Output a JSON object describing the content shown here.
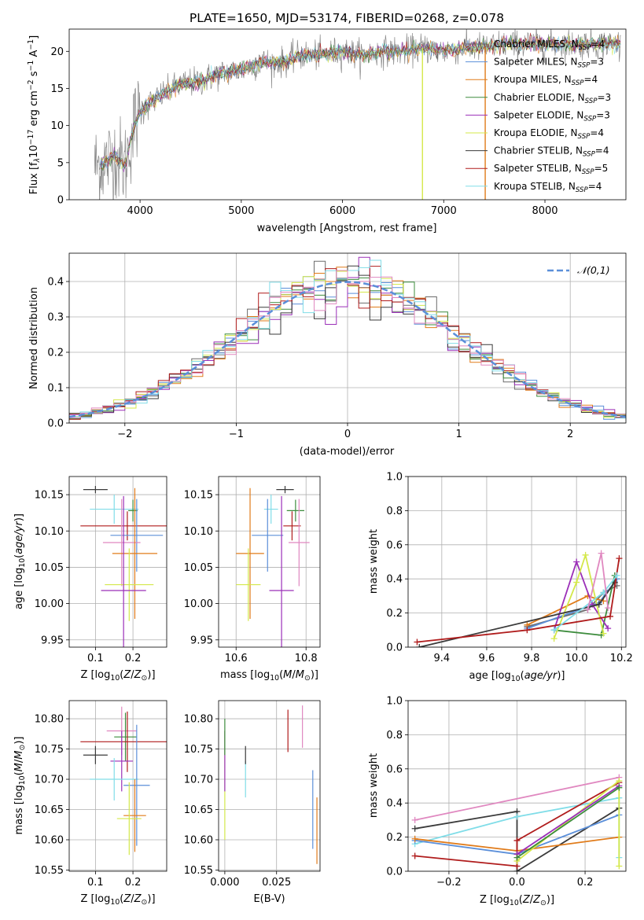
{
  "colors": {
    "Chabrier MILES": "#6b6b6b",
    "Salpeter MILES": "#5b8fd9",
    "Kroupa MILES": "#e07b1a",
    "Chabrier ELODIE": "#3d8c3d",
    "Salpeter ELODIE": "#9b2fb8",
    "Kroupa ELODIE": "#d4e84a",
    "Chabrier STELIB": "#3a3a3a",
    "Salpeter STELIB": "#b01c1c",
    "Kroupa STELIB": "#80dde8",
    "pink": "#e088c0",
    "normal_curve": "#5b8fd9"
  },
  "chart_data": [
    {
      "id": "spectrum",
      "type": "line",
      "title": "PLATE=1650, MJD=53174, FIBERID=0268, z=0.078",
      "xlabel": "wavelength [Angstrom, rest frame]",
      "ylabel": "Flux [f_λ10^-17 erg cm^-2 s^-1 A^-1]",
      "xlim": [
        3300,
        8800
      ],
      "ylim": [
        0,
        23
      ],
      "xticks": [
        4000,
        5000,
        6000,
        7000,
        8000
      ],
      "yticks": [
        0,
        5,
        10,
        15,
        20
      ],
      "legend_position": "top-right",
      "legend": [
        {
          "model": "Chabrier MILES",
          "nssp": "4"
        },
        {
          "model": "Salpeter MILES",
          "nssp": "3"
        },
        {
          "model": "Kroupa MILES",
          "nssp": "4"
        },
        {
          "model": "Chabrier ELODIE",
          "nssp": "3"
        },
        {
          "model": "Salpeter ELODIE",
          "nssp": "3"
        },
        {
          "model": "Kroupa ELODIE",
          "nssp": "4"
        },
        {
          "model": "Chabrier STELIB",
          "nssp": "4"
        },
        {
          "model": "Salpeter STELIB",
          "nssp": "5"
        },
        {
          "model": "Kroupa STELIB",
          "nssp": "4"
        }
      ],
      "continuum": {
        "x": [
          3550,
          3650,
          3750,
          3850,
          3950,
          4050,
          4200,
          4400,
          4600,
          4800,
          5000,
          5200,
          5400,
          5600,
          5800,
          6000,
          6200,
          6400,
          6600,
          6800,
          7000,
          7200,
          7400,
          7600,
          7800
        ],
        "y": [
          4.5,
          5.0,
          6.0,
          4.5,
          10.5,
          12.5,
          14.0,
          15.5,
          16.0,
          17.0,
          17.5,
          18.5,
          18.5,
          19.5,
          19.5,
          20.0,
          19.5,
          20.0,
          20.0,
          20.5,
          20.0,
          20.5,
          20.5,
          21.0,
          21.0
        ]
      },
      "dips": [
        {
          "x": 6790,
          "y": 0,
          "series": "Kroupa ELODIE"
        },
        {
          "x": 7410,
          "y": 0,
          "series": "Kroupa MILES"
        }
      ]
    },
    {
      "id": "residuals",
      "type": "line",
      "xlabel": "(data-model)/error",
      "ylabel": "Normed distribution",
      "xlim": [
        -2.5,
        2.5
      ],
      "ylim": [
        0,
        0.48
      ],
      "xticks": [
        -2,
        -1,
        0,
        1,
        2
      ],
      "yticks": [
        0.0,
        0.1,
        0.2,
        0.3,
        0.4
      ],
      "grid": true,
      "legend_position": "top-right",
      "legend_label": "𝒩(0,1)",
      "normal": {
        "mu": 0,
        "sigma": 1
      }
    },
    {
      "id": "age-vs-z",
      "type": "scatter",
      "xlabel": "Z [log10(Z/Z⊙)]",
      "ylabel": "age [log10(age/yr)]",
      "xlim": [
        0.03,
        0.29
      ],
      "ylim": [
        9.94,
        10.175
      ],
      "xticks": [
        0.1,
        0.2
      ],
      "yticks": [
        9.95,
        10.0,
        10.05,
        10.1,
        10.15
      ],
      "grid": true,
      "points": [
        {
          "x": 0.1,
          "y": 10.157,
          "xerr": 0.065,
          "yerr": 0.005,
          "series": "Chabrier STELIB"
        },
        {
          "x": 0.15,
          "y": 10.13,
          "xerr": 0.13,
          "yerr": 0.02,
          "series": "Kroupa STELIB"
        },
        {
          "x": 0.2,
          "y": 10.128,
          "xerr": 0.025,
          "yerr": 0.015,
          "series": "Chabrier ELODIE"
        },
        {
          "x": 0.185,
          "y": 10.107,
          "xerr": 0.25,
          "yerr": 0.02,
          "series": "Salpeter STELIB"
        },
        {
          "x": 0.21,
          "y": 10.094,
          "xerr": 0.14,
          "yerr": 0.05,
          "series": "Salpeter MILES"
        },
        {
          "x": 0.17,
          "y": 10.084,
          "xerr": 0.1,
          "yerr": 0.06,
          "series": "pink"
        },
        {
          "x": 0.205,
          "y": 10.069,
          "xerr": 0.12,
          "yerr": 0.09,
          "series": "Kroupa MILES"
        },
        {
          "x": 0.19,
          "y": 10.026,
          "xerr": 0.13,
          "yerr": 0.05,
          "series": "Kroupa ELODIE"
        },
        {
          "x": 0.175,
          "y": 10.018,
          "xerr": 0.12,
          "yerr": 0.13,
          "series": "Salpeter ELODIE"
        }
      ]
    },
    {
      "id": "age-vs-mass",
      "type": "scatter",
      "xlabel": "mass [log10(M/M⊙)]",
      "xlim": [
        10.55,
        10.84
      ],
      "ylim": [
        9.94,
        10.175
      ],
      "xticks": [
        10.6,
        10.8
      ],
      "yticks": [
        9.95,
        10.0,
        10.05,
        10.1,
        10.15
      ],
      "grid": true,
      "points": [
        {
          "x": 10.74,
          "y": 10.157,
          "xerr": 0.05,
          "yerr": 0.005,
          "series": "Chabrier STELIB"
        },
        {
          "x": 10.7,
          "y": 10.13,
          "xerr": 0.04,
          "yerr": 0.02,
          "series": "Kroupa STELIB"
        },
        {
          "x": 10.77,
          "y": 10.128,
          "xerr": 0.05,
          "yerr": 0.015,
          "series": "Chabrier ELODIE"
        },
        {
          "x": 10.76,
          "y": 10.107,
          "xerr": 0.05,
          "yerr": 0.02,
          "series": "Salpeter STELIB"
        },
        {
          "x": 10.69,
          "y": 10.094,
          "xerr": 0.09,
          "yerr": 0.05,
          "series": "Salpeter MILES"
        },
        {
          "x": 10.78,
          "y": 10.084,
          "xerr": 0.06,
          "yerr": 0.06,
          "series": "pink"
        },
        {
          "x": 10.64,
          "y": 10.069,
          "xerr": 0.08,
          "yerr": 0.09,
          "series": "Kroupa MILES"
        },
        {
          "x": 10.635,
          "y": 10.026,
          "xerr": 0.07,
          "yerr": 0.05,
          "series": "Kroupa ELODIE"
        },
        {
          "x": 10.73,
          "y": 10.018,
          "xerr": 0.07,
          "yerr": 0.13,
          "series": "Salpeter ELODIE"
        }
      ]
    },
    {
      "id": "weight-vs-age",
      "type": "line",
      "xlabel": "age [log10(age/yr)]",
      "ylabel": "mass weight",
      "xlim": [
        9.25,
        10.22
      ],
      "ylim": [
        0,
        1
      ],
      "xticks": [
        9.4,
        9.6,
        9.8,
        10.0,
        10.2
      ],
      "yticks": [
        0.0,
        0.2,
        0.4,
        0.6,
        0.8,
        1.0
      ],
      "grid": true,
      "series": [
        {
          "color": "Chabrier MILES",
          "x": [
            9.78,
            10.05,
            10.12,
            10.18
          ],
          "y": [
            0.12,
            0.22,
            0.32,
            0.36
          ]
        },
        {
          "color": "Salpeter MILES",
          "x": [
            9.78,
            10.1,
            10.18
          ],
          "y": [
            0.11,
            0.26,
            0.4
          ]
        },
        {
          "color": "Kroupa MILES",
          "x": [
            9.78,
            10.05,
            10.12
          ],
          "y": [
            0.13,
            0.3,
            0.27
          ]
        },
        {
          "color": "Chabrier ELODIE",
          "x": [
            9.9,
            10.11,
            10.17
          ],
          "y": [
            0.1,
            0.07,
            0.42
          ]
        },
        {
          "color": "Salpeter ELODIE",
          "x": [
            9.9,
            10.0,
            10.07,
            10.14
          ],
          "y": [
            0.1,
            0.5,
            0.25,
            0.11
          ]
        },
        {
          "color": "Kroupa ELODIE",
          "x": [
            9.9,
            10.0,
            10.04,
            10.12
          ],
          "y": [
            0.05,
            0.38,
            0.54,
            0.08
          ]
        },
        {
          "color": "Chabrier STELIB",
          "x": [
            9.3,
            10.1,
            10.17
          ],
          "y": [
            0.0,
            0.25,
            0.38
          ]
        },
        {
          "color": "Salpeter STELIB",
          "x": [
            9.29,
            9.78,
            10.15,
            10.19
          ],
          "y": [
            0.03,
            0.1,
            0.18,
            0.52
          ]
        },
        {
          "color": "Kroupa STELIB",
          "x": [
            9.9,
            10.12,
            10.18
          ],
          "y": [
            0.1,
            0.32,
            0.42
          ]
        },
        {
          "color": "pink",
          "x": [
            10.05,
            10.11,
            10.14
          ],
          "y": [
            0.22,
            0.55,
            0.23
          ]
        }
      ]
    },
    {
      "id": "mass-vs-z",
      "type": "scatter",
      "xlabel": "Z [log10(Z/Z⊙)]",
      "ylabel": "mass [log10(M/M⊙)]",
      "xlim": [
        0.03,
        0.29
      ],
      "ylim": [
        10.548,
        10.83
      ],
      "xticks": [
        0.1,
        0.2
      ],
      "yticks": [
        10.55,
        10.6,
        10.65,
        10.7,
        10.75,
        10.8
      ],
      "grid": true,
      "points": [
        {
          "x": 0.17,
          "y": 10.78,
          "xerr": 0.08,
          "yerr": 0.04,
          "series": "pink"
        },
        {
          "x": 0.18,
          "y": 10.77,
          "xerr": 0.06,
          "yerr": 0.04,
          "series": "Chabrier ELODIE"
        },
        {
          "x": 0.185,
          "y": 10.762,
          "xerr": 0.25,
          "yerr": 0.05,
          "series": "Salpeter STELIB"
        },
        {
          "x": 0.1,
          "y": 10.74,
          "xerr": 0.065,
          "yerr": 0.015,
          "series": "Chabrier STELIB"
        },
        {
          "x": 0.17,
          "y": 10.73,
          "xerr": 0.06,
          "yerr": 0.05,
          "series": "Salpeter ELODIE"
        },
        {
          "x": 0.15,
          "y": 10.7,
          "xerr": 0.13,
          "yerr": 0.035,
          "series": "Kroupa STELIB"
        },
        {
          "x": 0.21,
          "y": 10.69,
          "xerr": 0.07,
          "yerr": 0.1,
          "series": "Salpeter MILES"
        },
        {
          "x": 0.205,
          "y": 10.64,
          "xerr": 0.06,
          "yerr": 0.06,
          "series": "Kroupa MILES"
        },
        {
          "x": 0.19,
          "y": 10.635,
          "xerr": 0.065,
          "yerr": 0.06,
          "series": "Kroupa ELODIE"
        }
      ]
    },
    {
      "id": "mass-vs-ebv",
      "type": "scatter",
      "xlabel": "E(B-V)",
      "xlim": [
        -0.003,
        0.046
      ],
      "ylim": [
        10.548,
        10.83
      ],
      "xticks": [
        0.0,
        0.025
      ],
      "yticks": [
        10.55,
        10.6,
        10.65,
        10.7,
        10.75,
        10.8
      ],
      "grid": true,
      "points": [
        {
          "x": 0.0,
          "y": 10.69,
          "yerr": 0.09,
          "series": "Kroupa ELODIE"
        },
        {
          "x": 0.0,
          "y": 10.73,
          "yerr": 0.05,
          "series": "Salpeter ELODIE"
        },
        {
          "x": 0.0,
          "y": 10.77,
          "yerr": 0.03,
          "series": "Chabrier ELODIE"
        },
        {
          "x": 0.01,
          "y": 10.7,
          "yerr": 0.03,
          "series": "Kroupa STELIB"
        },
        {
          "x": 0.01,
          "y": 10.74,
          "yerr": 0.015,
          "series": "Chabrier STELIB"
        },
        {
          "x": 0.0305,
          "y": 10.78,
          "yerr": 0.035,
          "series": "Salpeter STELIB"
        },
        {
          "x": 0.0375,
          "y": 10.787,
          "yerr": 0.035,
          "series": "pink"
        },
        {
          "x": 0.0425,
          "y": 10.65,
          "yerr": 0.065,
          "series": "Salpeter MILES"
        },
        {
          "x": 0.0445,
          "y": 10.615,
          "yerr": 0.055,
          "series": "Kroupa MILES"
        }
      ]
    },
    {
      "id": "weight-vs-z",
      "type": "line",
      "xlabel": "Z [log10(Z/Z⊙)]",
      "ylabel": "mass weight",
      "xlim": [
        -0.32,
        0.32
      ],
      "ylim": [
        0,
        1
      ],
      "xticks": [
        -0.2,
        0.0,
        0.2
      ],
      "yticks": [
        0.0,
        0.2,
        0.4,
        0.6,
        0.8,
        1.0
      ],
      "grid": true,
      "series": [
        {
          "color": "pink",
          "x": [
            -0.3,
            0.3
          ],
          "y": [
            0.3,
            0.55
          ]
        },
        {
          "color": "Chabrier STELIB",
          "x": [
            -0.3,
            0.0,
            0.0,
            0.3
          ],
          "y": [
            0.25,
            0.35,
            0.0,
            0.37
          ]
        },
        {
          "color": "Kroupa STELIB",
          "x": [
            -0.3,
            0.0,
            0.3,
            0.3
          ],
          "y": [
            0.16,
            0.32,
            0.43,
            0.08
          ]
        },
        {
          "color": "Salpeter MILES",
          "x": [
            -0.3,
            0.0,
            0.3
          ],
          "y": [
            0.18,
            0.1,
            0.33
          ]
        },
        {
          "color": "Kroupa MILES",
          "x": [
            -0.3,
            0.0,
            0.3
          ],
          "y": [
            0.19,
            0.12,
            0.2
          ]
        },
        {
          "color": "Salpeter STELIB",
          "x": [
            -0.3,
            0.0,
            0.0,
            0.3
          ],
          "y": [
            0.09,
            0.03,
            0.18,
            0.52
          ]
        },
        {
          "color": "Kroupa ELODIE",
          "x": [
            0.0,
            0.3,
            0.3
          ],
          "y": [
            0.06,
            0.53,
            0.03
          ]
        },
        {
          "color": "Salpeter ELODIE",
          "x": [
            0.0,
            0.3
          ],
          "y": [
            0.1,
            0.5
          ]
        },
        {
          "color": "Chabrier ELODIE",
          "x": [
            0.0,
            0.3
          ],
          "y": [
            0.08,
            0.49
          ]
        }
      ]
    }
  ]
}
